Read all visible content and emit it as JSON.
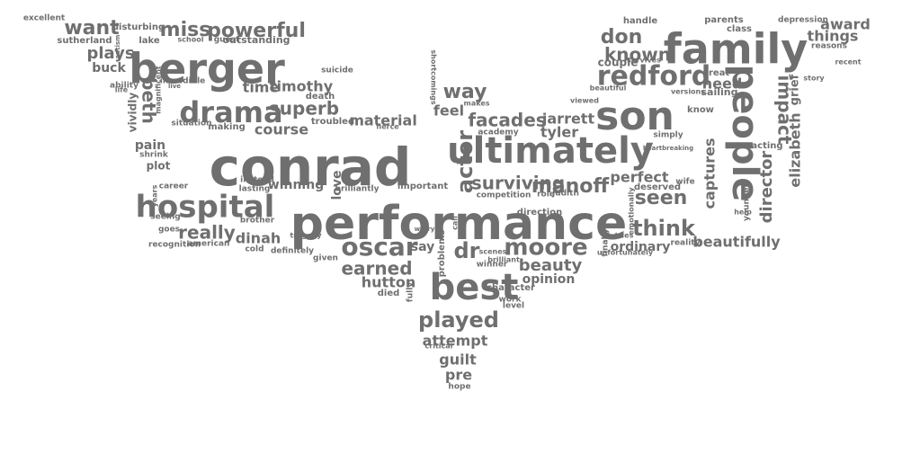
{
  "palette": {
    "orange": "#e8a400",
    "green": "#6aa823",
    "gray": "#6b6b6b",
    "pink": "#e63d8c",
    "purple": "#7b5aa6",
    "brown": "#d46b0a",
    "teal": "#3a9a8e",
    "blue": "#4f7fb0"
  },
  "words": [
    {
      "text": "performance",
      "color": "green"
    },
    {
      "text": "conrad",
      "color": "orange"
    },
    {
      "text": "ultimately",
      "color": "orange"
    },
    {
      "text": "berger",
      "color": "gray"
    },
    {
      "text": "family",
      "color": "pink"
    },
    {
      "text": "son",
      "color": "gray"
    },
    {
      "text": "people",
      "color": "gray"
    },
    {
      "text": "best",
      "color": "orange"
    },
    {
      "text": "hospital",
      "color": "brown"
    },
    {
      "text": "drama",
      "color": "green"
    },
    {
      "text": "redford",
      "color": "green"
    },
    {
      "text": "oscar",
      "color": "orange"
    },
    {
      "text": "moore",
      "color": "orange"
    },
    {
      "text": "played",
      "color": "orange"
    },
    {
      "text": "powerful",
      "color": "gray"
    },
    {
      "text": "actor",
      "color": "brown"
    },
    {
      "text": "surviving",
      "color": "orange"
    },
    {
      "text": "manoff",
      "color": "purple"
    },
    {
      "text": "facades",
      "color": "purple"
    },
    {
      "text": "impact",
      "color": "brown"
    },
    {
      "text": "seen",
      "color": "green"
    },
    {
      "text": "think",
      "color": "teal"
    },
    {
      "text": "miss",
      "color": "green"
    },
    {
      "text": "want",
      "color": "orange"
    },
    {
      "text": "don",
      "color": "orange"
    },
    {
      "text": "known",
      "color": "purple"
    },
    {
      "text": "superb",
      "color": "green"
    },
    {
      "text": "really",
      "color": "green"
    },
    {
      "text": "earned",
      "color": "pink"
    },
    {
      "text": "beauty",
      "color": "green"
    },
    {
      "text": "way",
      "color": "pink"
    },
    {
      "text": "jarrett",
      "color": "gray"
    },
    {
      "text": "tyler",
      "color": "gray"
    },
    {
      "text": "course",
      "color": "gray"
    },
    {
      "text": "material",
      "color": "green"
    },
    {
      "text": "feel",
      "color": "purple"
    },
    {
      "text": "beth",
      "color": "green"
    },
    {
      "text": "timothy",
      "color": "gray"
    },
    {
      "text": "time",
      "color": "green"
    },
    {
      "text": "dr",
      "color": "green"
    },
    {
      "text": "say",
      "color": "pink"
    },
    {
      "text": "hutton",
      "color": "purple"
    },
    {
      "text": "attempt",
      "color": "green"
    },
    {
      "text": "guilt",
      "color": "purple"
    },
    {
      "text": "pre",
      "color": "purple"
    },
    {
      "text": "perfect",
      "color": "pink"
    },
    {
      "text": "director",
      "color": "brown"
    },
    {
      "text": "beautifully",
      "color": "brown"
    },
    {
      "text": "elizabeth",
      "color": "brown"
    },
    {
      "text": "captures",
      "color": "orange"
    },
    {
      "text": "need",
      "color": "orange"
    },
    {
      "text": "award",
      "color": "brown"
    },
    {
      "text": "things",
      "color": "orange"
    },
    {
      "text": "plays",
      "color": "brown"
    },
    {
      "text": "buck",
      "color": "gray"
    },
    {
      "text": "dinah",
      "color": "gray"
    },
    {
      "text": "winning",
      "color": "brown"
    },
    {
      "text": "ordinary",
      "color": "orange"
    },
    {
      "text": "pain",
      "color": "gray"
    },
    {
      "text": "opinion",
      "color": "gray"
    },
    {
      "text": "couple",
      "color": "gray"
    },
    {
      "text": "grief",
      "color": "purple"
    },
    {
      "text": "vividly",
      "color": "green"
    },
    {
      "text": "love",
      "color": "green"
    },
    {
      "text": "plot",
      "color": "gray"
    },
    {
      "text": "excellent",
      "color": "pink"
    },
    {
      "text": "disturbing",
      "color": "green"
    },
    {
      "text": "sutherland",
      "color": "purple"
    },
    {
      "text": "lake",
      "color": "gray"
    },
    {
      "text": "outstanding",
      "color": "orange"
    },
    {
      "text": "guest",
      "color": "gray"
    },
    {
      "text": "suicide",
      "color": "gray"
    },
    {
      "text": "ability",
      "color": "gray"
    },
    {
      "text": "incredible",
      "color": "green"
    },
    {
      "text": "death",
      "color": "pink"
    },
    {
      "text": "troubled",
      "color": "orange"
    },
    {
      "text": "making",
      "color": "orange"
    },
    {
      "text": "situation",
      "color": "purple"
    },
    {
      "text": "shrink",
      "color": "gray"
    },
    {
      "text": "career",
      "color": "gray"
    },
    {
      "text": "instead",
      "color": "orange"
    },
    {
      "text": "lasting",
      "color": "orange"
    },
    {
      "text": "brother",
      "color": "orange"
    },
    {
      "text": "seeing",
      "color": "gray"
    },
    {
      "text": "goes",
      "color": "gray"
    },
    {
      "text": "recognition",
      "color": "orange"
    },
    {
      "text": "american",
      "color": "pink"
    },
    {
      "text": "cold",
      "color": "purple"
    },
    {
      "text": "definitely",
      "color": "orange"
    },
    {
      "text": "tragedy",
      "color": "purple"
    },
    {
      "text": "brilliantly",
      "color": "green"
    },
    {
      "text": "important",
      "color": "gray"
    },
    {
      "text": "competition",
      "color": "brown"
    },
    {
      "text": "direction",
      "color": "gray"
    },
    {
      "text": "role",
      "color": "gray"
    },
    {
      "text": "judith",
      "color": "purple"
    },
    {
      "text": "deserved",
      "color": "gray"
    },
    {
      "text": "wife",
      "color": "gray"
    },
    {
      "text": "handle",
      "color": "gray"
    },
    {
      "text": "parents",
      "color": "orange"
    },
    {
      "text": "class",
      "color": "gray"
    },
    {
      "text": "depression",
      "color": "orange"
    },
    {
      "text": "reasons",
      "color": "purple"
    },
    {
      "text": "recent",
      "color": "orange"
    },
    {
      "text": "story",
      "color": "brown"
    },
    {
      "text": "survives",
      "color": "green"
    },
    {
      "text": "great",
      "color": "orange"
    },
    {
      "text": "sailing",
      "color": "pink"
    },
    {
      "text": "know",
      "color": "gray"
    },
    {
      "text": "academy",
      "color": "orange"
    },
    {
      "text": "simply",
      "color": "purple"
    },
    {
      "text": "acting",
      "color": "orange"
    },
    {
      "text": "heartbreaking",
      "color": "brown"
    },
    {
      "text": "winner",
      "color": "gray"
    },
    {
      "text": "character",
      "color": "gray"
    },
    {
      "text": "died",
      "color": "purple"
    },
    {
      "text": "level",
      "color": "orange"
    },
    {
      "text": "critical",
      "color": "orange"
    },
    {
      "text": "hope",
      "color": "teal"
    },
    {
      "text": "given",
      "color": "purple"
    },
    {
      "text": "problems",
      "color": "purple"
    },
    {
      "text": "finally",
      "color": "brown"
    },
    {
      "text": "reality",
      "color": "gray"
    },
    {
      "text": "younger",
      "color": "purple"
    },
    {
      "text": "help",
      "color": "gray"
    },
    {
      "text": "unfortunately",
      "color": "gray"
    },
    {
      "text": "emotionally",
      "color": "gray"
    },
    {
      "text": "tries",
      "color": "gray"
    },
    {
      "text": "versions",
      "color": "pink"
    },
    {
      "text": "beautiful",
      "color": "orange"
    },
    {
      "text": "viewed",
      "color": "purple"
    },
    {
      "text": "shortcomings",
      "color": "purple"
    },
    {
      "text": "fierce",
      "color": "orange"
    },
    {
      "text": "makes",
      "color": "purple"
    },
    {
      "text": "work",
      "color": "gray"
    },
    {
      "text": "fully",
      "color": "green"
    },
    {
      "text": "worry",
      "color": "gray"
    },
    {
      "text": "call",
      "color": "purple"
    },
    {
      "text": "scenes",
      "color": "gray"
    },
    {
      "text": "brilliant",
      "color": "orange"
    },
    {
      "text": "years",
      "color": "orange"
    },
    {
      "text": "magnificent",
      "color": "purple"
    },
    {
      "text": "life",
      "color": "gray"
    },
    {
      "text": "live",
      "color": "gray"
    },
    {
      "text": "school",
      "color": "purple"
    },
    {
      "text": "autism",
      "color": "pink"
    }
  ]
}
